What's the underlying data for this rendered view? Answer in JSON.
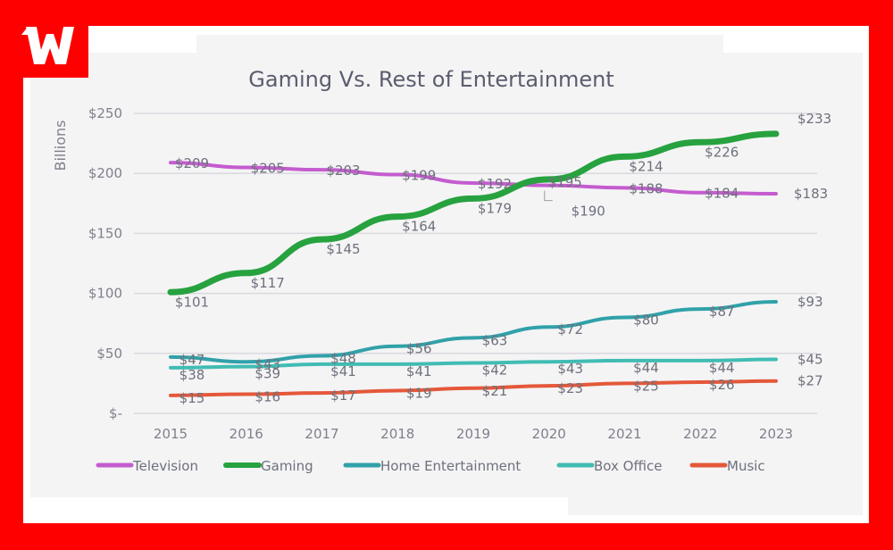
{
  "brand": {
    "logo_letter": "W",
    "frame_color": "#fe0000"
  },
  "chart_data": {
    "type": "line",
    "title": "Gaming Vs. Rest of Entertainment",
    "xlabel": "",
    "ylabel": "Billions",
    "x": [
      "2015",
      "2016",
      "2017",
      "2018",
      "2019",
      "2020",
      "2021",
      "2022",
      "2023"
    ],
    "ylim": [
      0,
      250
    ],
    "yticks": [
      {
        "value": 250,
        "label": "$250"
      },
      {
        "value": 200,
        "label": "$200"
      },
      {
        "value": 150,
        "label": "$150"
      },
      {
        "value": 100,
        "label": "$100"
      },
      {
        "value": 50,
        "label": "$50"
      },
      {
        "value": 0,
        "label": "$-"
      }
    ],
    "grid": true,
    "legend_position": "bottom",
    "series": [
      {
        "name": "Television",
        "color": "#c45ccf",
        "width": "thin",
        "values": [
          209,
          205,
          203,
          199,
          192,
          190,
          188,
          184,
          183
        ],
        "labels": [
          "$209",
          "$205",
          "$203",
          "$199",
          "$192",
          "$190",
          "$188",
          "$184",
          "$183"
        ]
      },
      {
        "name": "Gaming",
        "color": "#27a23f",
        "width": "thick",
        "values": [
          101,
          117,
          145,
          164,
          179,
          195,
          214,
          226,
          233
        ],
        "labels": [
          "$101",
          "$117",
          "$145",
          "$164",
          "$179",
          "$195",
          "$214",
          "$226",
          "$233"
        ]
      },
      {
        "name": "Home Entertainment",
        "color": "#31a1a9",
        "width": "thin",
        "values": [
          47,
          43,
          48,
          56,
          63,
          72,
          80,
          87,
          93
        ],
        "labels": [
          "$47",
          "$43",
          "$48",
          "$56",
          "$63",
          "$72",
          "$80",
          "$87",
          "$93"
        ]
      },
      {
        "name": "Box Office",
        "color": "#41bcb3",
        "width": "thin",
        "values": [
          38,
          39,
          41,
          41,
          42,
          43,
          44,
          44,
          45
        ],
        "labels": [
          "$38",
          "$39",
          "$41",
          "$41",
          "$42",
          "$43",
          "$44",
          "$44",
          "$45"
        ]
      },
      {
        "name": "Music",
        "color": "#e4583a",
        "width": "thin",
        "values": [
          15,
          16,
          17,
          19,
          21,
          23,
          25,
          26,
          27
        ],
        "labels": [
          "$15",
          "$16",
          "$17",
          "$19",
          "$21",
          "$23",
          "$25",
          "$26",
          "$27"
        ]
      }
    ]
  }
}
